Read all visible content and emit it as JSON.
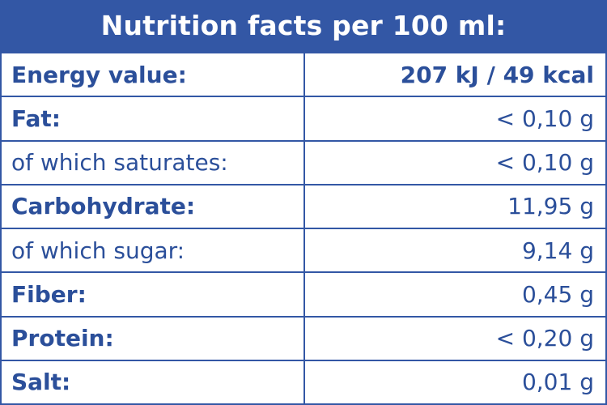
{
  "title": "Nutrition facts per 100 ml:",
  "colors": {
    "header_bg": "#3357a5",
    "text": "#2b4f9a",
    "border": "#3357a5"
  },
  "rows": [
    {
      "label": "Energy value:",
      "value": "207 kJ / 49 kcal",
      "emphasis": true
    },
    {
      "label": "Fat:",
      "value": "< 0,10 g",
      "emphasis": true
    },
    {
      "label": "of which saturates:",
      "value": "< 0,10 g",
      "emphasis": false
    },
    {
      "label": "Carbohydrate:",
      "value": "11,95 g",
      "emphasis": true
    },
    {
      "label": "of which sugar:",
      "value": "9,14 g",
      "emphasis": false
    },
    {
      "label": "Fiber:",
      "value": "0,45 g",
      "emphasis": true
    },
    {
      "label": "Protein:",
      "value": "< 0,20 g",
      "emphasis": true
    },
    {
      "label": "Salt:",
      "value": "0,01 g",
      "emphasis": true
    }
  ]
}
